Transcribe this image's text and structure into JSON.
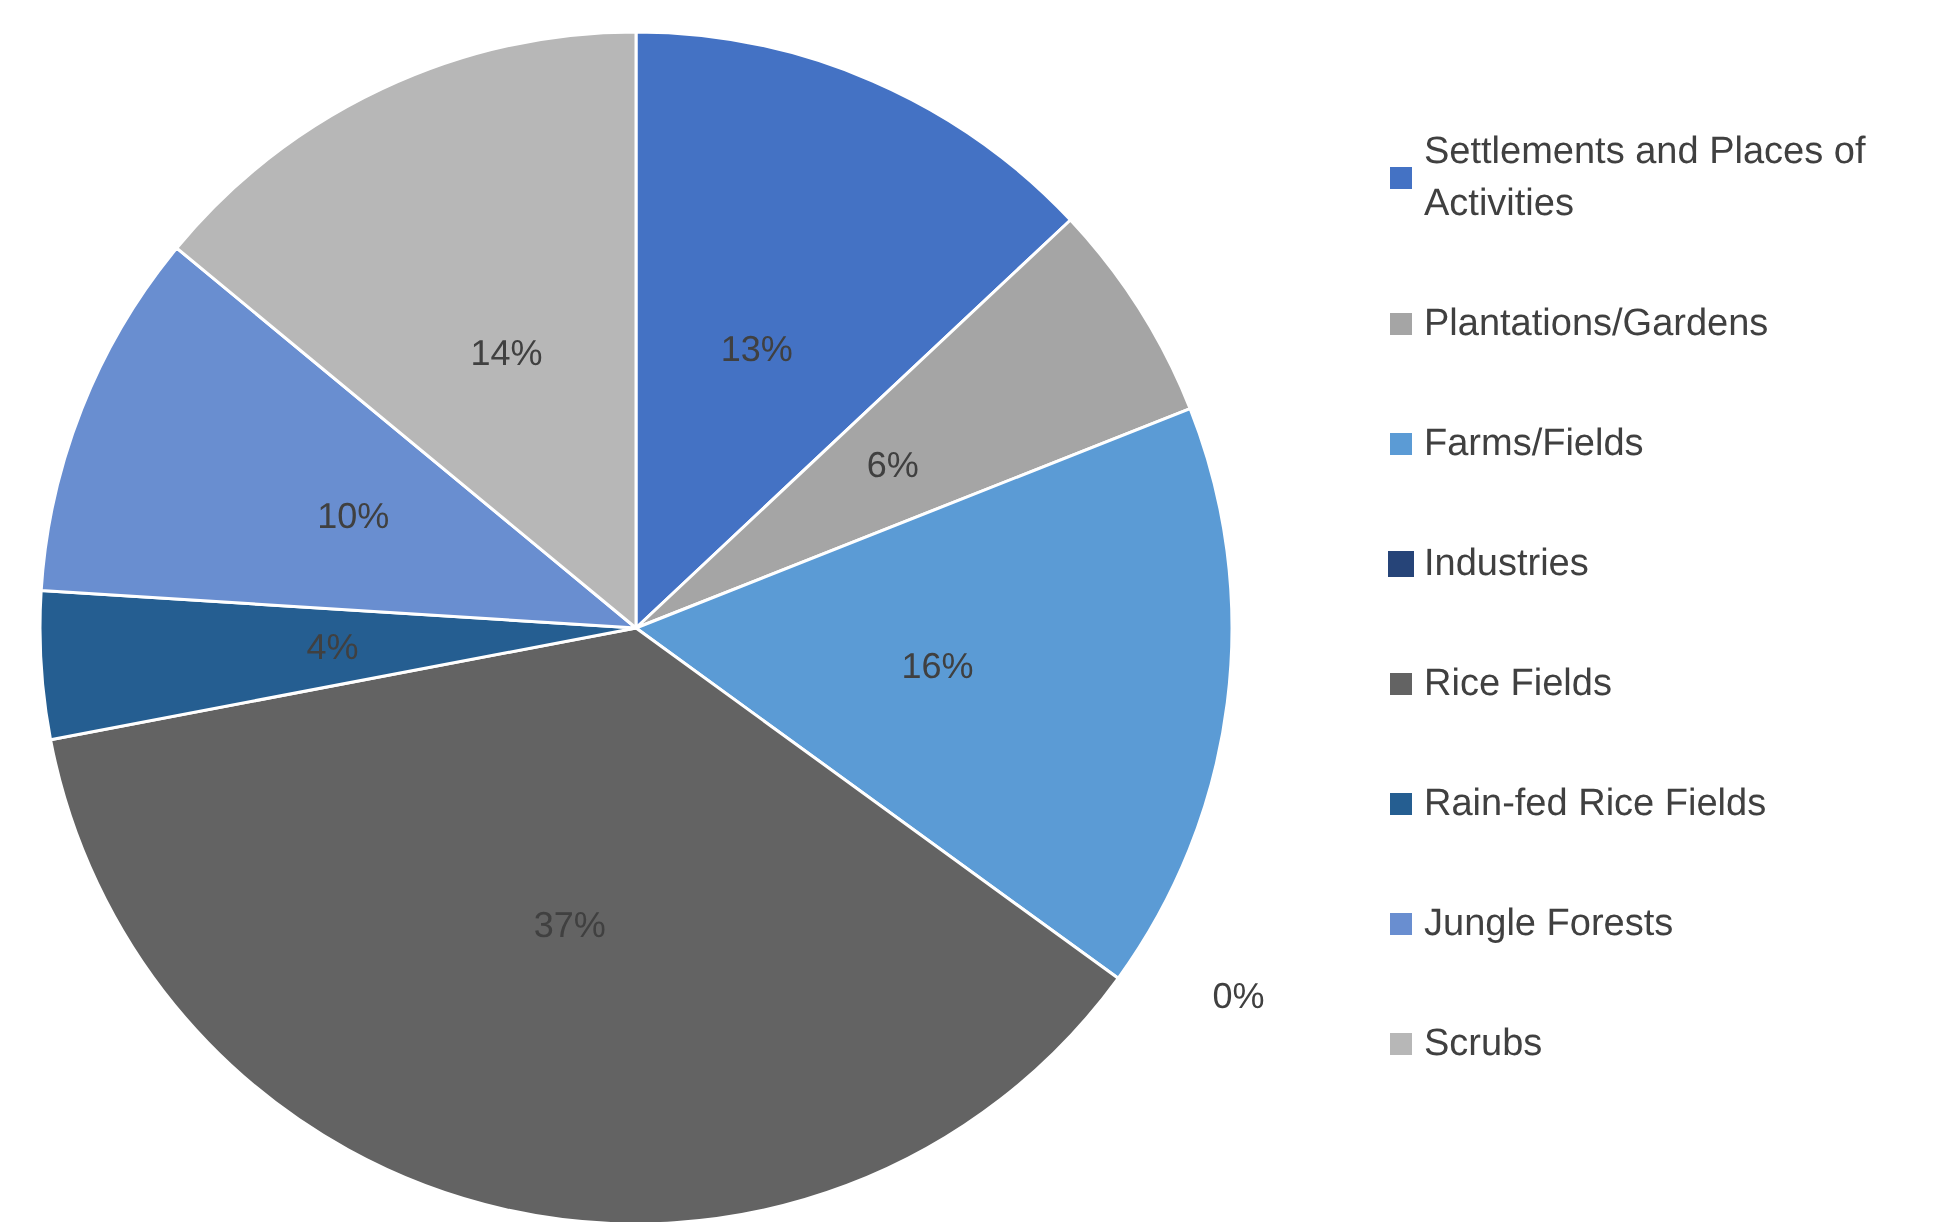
{
  "chart_data": {
    "type": "pie",
    "categories": [
      "Settlements and Places of Activities",
      "Plantations/Gardens",
      "Farms/Fields",
      "Industries",
      "Rice Fields",
      "Rain-fed Rice Fields",
      "Jungle Forests",
      "Scrubs"
    ],
    "values": [
      13,
      6,
      16,
      0,
      37,
      4,
      10,
      14
    ],
    "value_labels": [
      "13%",
      "6%",
      "16%",
      "0%",
      "37%",
      "4%",
      "10%",
      "14%"
    ],
    "colors": [
      "#4472c4",
      "#a5a5a5",
      "#5b9bd5",
      "#264478",
      "#636363",
      "#255e91",
      "#698ed0",
      "#b7b7b7"
    ],
    "legend": "right"
  }
}
